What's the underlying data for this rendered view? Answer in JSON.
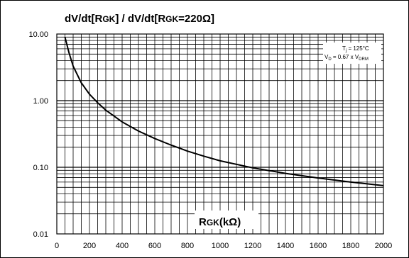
{
  "chart_data": {
    "type": "line",
    "title_main": "dV/dt[R",
    "title_sub1": "GK",
    "title_mid": "] / dV/dt[R",
    "title_sub2": "GK",
    "title_end": "=220Ω]",
    "xlabel_main": "R",
    "xlabel_sub": "GK",
    "xlabel_end": "(kΩ)",
    "legend": {
      "line1_main": "T",
      "line1_sub": "j",
      "line1_end": " = 125°C",
      "line2_main": "V",
      "line2_sub": "D",
      "line2_mid": " = 0.67 x V",
      "line2_sub2": "DRM"
    },
    "xlim": [
      0,
      2000
    ],
    "ylim": [
      0.01,
      10
    ],
    "yscale": "log",
    "grid": true,
    "x_ticks": [
      "0",
      "200",
      "400",
      "600",
      "800",
      "1000",
      "1200",
      "1400",
      "1600",
      "1800",
      "2000"
    ],
    "y_ticks": [
      "10.00",
      "1.00",
      "0.10",
      "0.01"
    ],
    "series": [
      {
        "x": [
          50,
          75,
          100,
          150,
          200,
          250,
          300,
          400,
          500,
          600,
          700,
          800,
          900,
          1000,
          1200,
          1400,
          1600,
          1800,
          2000
        ],
        "y": [
          9.0,
          5.2,
          3.3,
          1.85,
          1.25,
          0.93,
          0.72,
          0.48,
          0.35,
          0.27,
          0.215,
          0.175,
          0.147,
          0.125,
          0.098,
          0.081,
          0.069,
          0.06,
          0.053
        ]
      }
    ]
  }
}
